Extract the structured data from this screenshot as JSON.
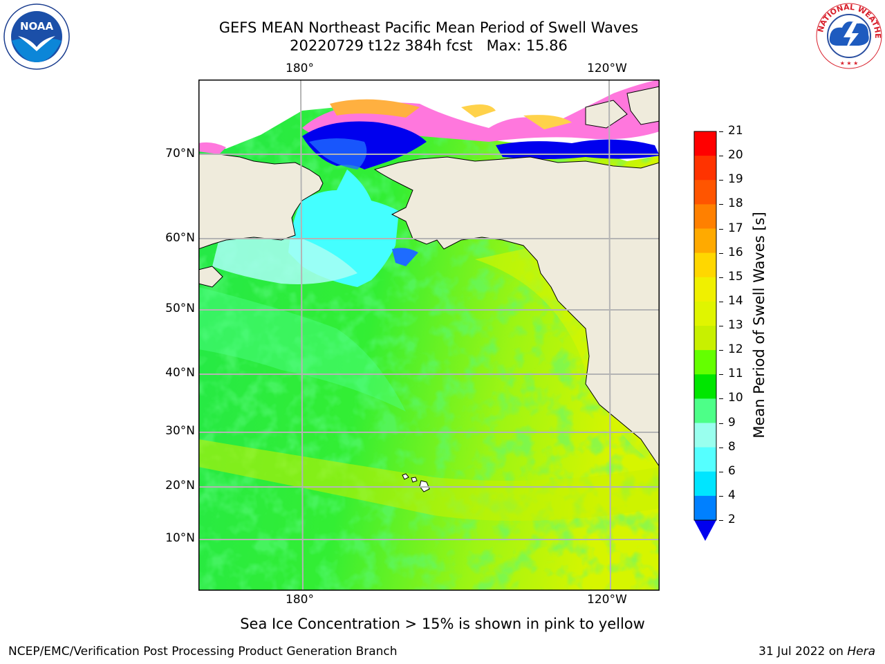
{
  "header": {
    "title_line1": "GEFS MEAN Northeast Pacific Mean Period of Swell Waves",
    "title_line2": "20220729 t12z 384h fcst   Max: 15.86"
  },
  "map": {
    "lon_labels_top": [
      "180°",
      "120°W"
    ],
    "lon_labels_bottom": [
      "180°",
      "120°W"
    ],
    "lat_labels": [
      "70°N",
      "60°N",
      "50°N",
      "40°N",
      "30°N",
      "20°N",
      "10°N"
    ],
    "land_color": "#efebdc",
    "grid_color": "#b4b4b4"
  },
  "colorbar": {
    "label": "Mean Period of Swell Waves [s]",
    "ticks": [
      "21",
      "20",
      "19",
      "18",
      "17",
      "16",
      "15",
      "14",
      "13",
      "12",
      "11",
      "10",
      "9",
      "8",
      "6",
      "4",
      "2"
    ],
    "colors": [
      "#ff0000",
      "#ff3300",
      "#ff5500",
      "#ff8000",
      "#ffaa00",
      "#ffd700",
      "#f0f000",
      "#e0f500",
      "#c8f000",
      "#64ff00",
      "#00e600",
      "#4dff88",
      "#99ffee",
      "#55ffff",
      "#00e5ff",
      "#0080ff"
    ],
    "extend_color": "#0000ee"
  },
  "notes": {
    "sea_ice": "Sea Ice Concentration > 15% is shown in pink to yellow"
  },
  "footer": {
    "left": "NCEP/EMC/Verification Post Processing Product Generation Branch",
    "date_prefix": "31 Jul 2022 on ",
    "machine": "Hera"
  },
  "logos": {
    "noaa": "NOAA",
    "nws": "NATIONAL WEATHER SERVICE"
  }
}
